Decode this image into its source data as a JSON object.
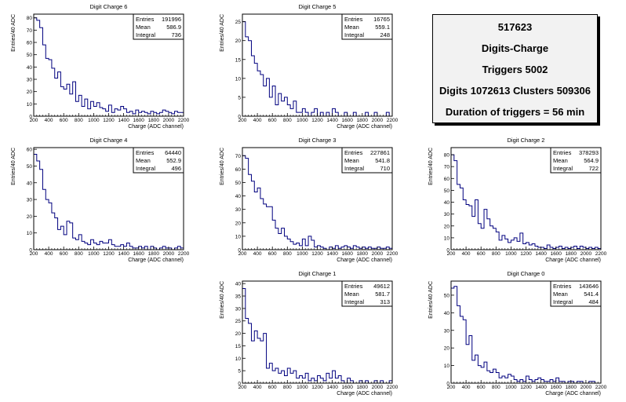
{
  "info_box": {
    "run": "517623",
    "title": "Digits-Charge",
    "triggers": "Triggers 5002",
    "digits_clusters": "Digits 1072613 Clusters 509306",
    "duration": "Duration of triggers = 56 min"
  },
  "stats_labels": {
    "entries": "Entries",
    "mean": "Mean",
    "integral": "Integral"
  },
  "colors": {
    "histogram_line": "#00007f",
    "frame": "#000000",
    "info_background": "#f2f2f2"
  },
  "chart_data": [
    {
      "type": "histogram",
      "title": "Digit Charge 6",
      "xlabel": "Charge (ADC channel)",
      "ylabel": "Entries/40 ADC",
      "xlim": [
        200,
        2200
      ],
      "ylim": [
        0,
        83
      ],
      "x_ticks": [
        200,
        400,
        600,
        800,
        1000,
        1200,
        1400,
        1600,
        1800,
        2000,
        2200
      ],
      "y_ticks": [
        0,
        10,
        20,
        30,
        40,
        50,
        60,
        70,
        80
      ],
      "bin_width": 40,
      "stats": {
        "entries": "191996",
        "mean": "586.9",
        "integral": "736"
      },
      "values": [
        80,
        78,
        72,
        58,
        47,
        46,
        39,
        31,
        36,
        24,
        22,
        26,
        18,
        28,
        12,
        17,
        8,
        14,
        6,
        12,
        8,
        11,
        7,
        6,
        4,
        9,
        3,
        6,
        5,
        8,
        6,
        3,
        4,
        2,
        5,
        3,
        4,
        3,
        2,
        4,
        3,
        2,
        3,
        5,
        4,
        3,
        2,
        4,
        3,
        3
      ]
    },
    {
      "type": "histogram",
      "title": "Digit Charge 5",
      "xlabel": "Charge (ADC channel)",
      "ylabel": "Entries/40 ADC",
      "xlim": [
        200,
        2200
      ],
      "ylim": [
        0,
        27
      ],
      "x_ticks": [
        200,
        400,
        600,
        800,
        1000,
        1200,
        1400,
        1600,
        1800,
        2000,
        2200
      ],
      "y_ticks": [
        0,
        5,
        10,
        15,
        20,
        25
      ],
      "bin_width": 40,
      "stats": {
        "entries": "16765",
        "mean": "559.1",
        "integral": "248"
      },
      "values": [
        25,
        21,
        20,
        16,
        14,
        12,
        11,
        8,
        10,
        5,
        8,
        3,
        6,
        4,
        5,
        3,
        2,
        4,
        1,
        1,
        2,
        1,
        0,
        1,
        2,
        0,
        1,
        0,
        1,
        0,
        2,
        1,
        0,
        0,
        1,
        0,
        0,
        1,
        0,
        0,
        0,
        1,
        0,
        0,
        1,
        0,
        0,
        0,
        1,
        0
      ]
    },
    {
      "type": "histogram",
      "title": "Digit Charge 4",
      "xlabel": "Charge (ADC channel)",
      "ylabel": "Entries/40 ADC",
      "xlim": [
        200,
        2200
      ],
      "ylim": [
        0,
        61
      ],
      "x_ticks": [
        200,
        400,
        600,
        800,
        1000,
        1200,
        1400,
        1600,
        1800,
        2000,
        2200
      ],
      "y_ticks": [
        0,
        10,
        20,
        30,
        40,
        50,
        60
      ],
      "bin_width": 40,
      "stats": {
        "entries": "64440",
        "mean": "552.9",
        "integral": "496"
      },
      "values": [
        57,
        53,
        48,
        36,
        30,
        28,
        22,
        19,
        12,
        14,
        9,
        17,
        16,
        7,
        6,
        9,
        5,
        4,
        3,
        6,
        4,
        3,
        5,
        4,
        4,
        6,
        3,
        2,
        2,
        3,
        2,
        4,
        2,
        1,
        1,
        2,
        1,
        2,
        0,
        2,
        1,
        0,
        1,
        2,
        1,
        1,
        0,
        1,
        2,
        1
      ]
    },
    {
      "type": "histogram",
      "title": "Digit Charge 3",
      "xlabel": "Charge (ADC channel)",
      "ylabel": "Entries/40 ADC",
      "xlim": [
        200,
        2200
      ],
      "ylim": [
        0,
        76
      ],
      "x_ticks": [
        200,
        400,
        600,
        800,
        1000,
        1200,
        1400,
        1600,
        1800,
        2000,
        2200
      ],
      "y_ticks": [
        0,
        10,
        20,
        30,
        40,
        50,
        60,
        70
      ],
      "bin_width": 40,
      "stats": {
        "entries": "227861",
        "mean": "541.8",
        "integral": "710"
      },
      "values": [
        70,
        68,
        56,
        51,
        43,
        46,
        38,
        34,
        32,
        32,
        22,
        16,
        12,
        16,
        10,
        8,
        6,
        4,
        5,
        3,
        8,
        3,
        10,
        7,
        2,
        3,
        2,
        1,
        0,
        2,
        1,
        3,
        1,
        2,
        3,
        2,
        1,
        3,
        2,
        1,
        2,
        1,
        2,
        1,
        1,
        2,
        1,
        1,
        2,
        1
      ]
    },
    {
      "type": "histogram",
      "title": "Digit Charge 2",
      "xlabel": "Charge (ADC channel)",
      "ylabel": "Entries/40 ADC",
      "xlim": [
        200,
        2200
      ],
      "ylim": [
        0,
        86
      ],
      "x_ticks": [
        200,
        400,
        600,
        800,
        1000,
        1200,
        1400,
        1600,
        1800,
        2000,
        2200
      ],
      "y_ticks": [
        0,
        10,
        20,
        30,
        40,
        50,
        60,
        70,
        80
      ],
      "bin_width": 40,
      "stats": {
        "entries": "378293",
        "mean": "564.9",
        "integral": "722"
      },
      "values": [
        80,
        75,
        55,
        52,
        42,
        38,
        37,
        28,
        42,
        22,
        18,
        34,
        26,
        20,
        18,
        15,
        8,
        12,
        9,
        6,
        8,
        10,
        7,
        14,
        5,
        6,
        4,
        5,
        3,
        2,
        2,
        1,
        4,
        2,
        1,
        2,
        3,
        1,
        2,
        1,
        2,
        3,
        1,
        3,
        2,
        1,
        2,
        1,
        2,
        1
      ]
    },
    {
      "type": "histogram",
      "title": "Digit Charge 1",
      "xlabel": "Charge (ADC channel)",
      "ylabel": "Entries/40 ADC",
      "xlim": [
        200,
        2200
      ],
      "ylim": [
        0,
        41
      ],
      "x_ticks": [
        200,
        400,
        600,
        800,
        1000,
        1200,
        1400,
        1600,
        1800,
        2000,
        2200
      ],
      "y_ticks": [
        0,
        5,
        10,
        15,
        20,
        25,
        30,
        35,
        40
      ],
      "bin_width": 40,
      "stats": {
        "entries": "49612",
        "mean": "581.7",
        "integral": "313"
      },
      "values": [
        38,
        26,
        24,
        17,
        21,
        18,
        17,
        20,
        6,
        8,
        5,
        6,
        4,
        5,
        3,
        6,
        4,
        5,
        2,
        3,
        2,
        4,
        1,
        2,
        1,
        3,
        2,
        1,
        4,
        2,
        5,
        2,
        3,
        1,
        0,
        2,
        1,
        0,
        0,
        1,
        0,
        1,
        0,
        0,
        1,
        0,
        1,
        0,
        0,
        1
      ]
    },
    {
      "type": "histogram",
      "title": "Digit Charge 0",
      "xlabel": "Charge (ADC channel)",
      "ylabel": "Entries/40 ADC",
      "xlim": [
        200,
        2200
      ],
      "ylim": [
        0,
        58
      ],
      "x_ticks": [
        200,
        400,
        600,
        800,
        1000,
        1200,
        1400,
        1600,
        1800,
        2000,
        2200
      ],
      "y_ticks": [
        0,
        10,
        20,
        30,
        40,
        50
      ],
      "bin_width": 40,
      "stats": {
        "entries": "143646",
        "mean": "541.4",
        "integral": "484"
      },
      "values": [
        54,
        55,
        44,
        38,
        36,
        22,
        27,
        13,
        16,
        10,
        9,
        12,
        7,
        6,
        8,
        6,
        3,
        4,
        3,
        5,
        4,
        2,
        1,
        2,
        1,
        4,
        2,
        1,
        2,
        3,
        2,
        1,
        1,
        2,
        1,
        3,
        1,
        1,
        0,
        1,
        1,
        0,
        1,
        1,
        0,
        0,
        1,
        1,
        0,
        0
      ]
    }
  ]
}
